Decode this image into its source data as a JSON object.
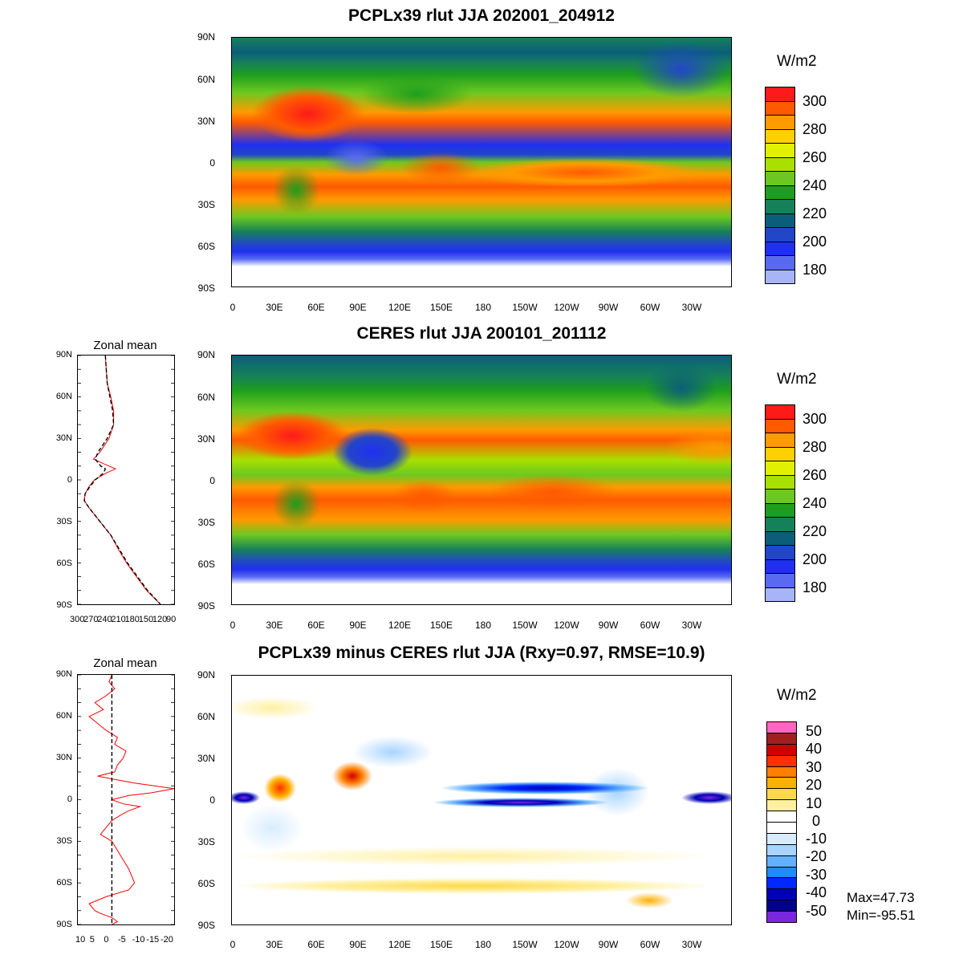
{
  "panels": [
    {
      "title": "PCPLx39 rlut JJA 202001_204912",
      "units": "W/m2",
      "colorbar": {
        "labels": [
          "300",
          "280",
          "260",
          "240",
          "220",
          "200",
          "180"
        ],
        "colors": [
          "#ff1a1a",
          "#ff5a00",
          "#ff9a00",
          "#ffd000",
          "#e0f000",
          "#a8e000",
          "#6cc820",
          "#1e9e1e",
          "#16805a",
          "#0a5e7a",
          "#2246c8",
          "#2030f0",
          "#5a6af0",
          "#a8b4f8",
          "#ffffff"
        ]
      }
    },
    {
      "title": "CERES rlut JJA 200101_201112",
      "units": "W/m2",
      "colorbar": {
        "labels": [
          "300",
          "280",
          "260",
          "240",
          "220",
          "200",
          "180"
        ],
        "colors": [
          "#ff1a1a",
          "#ff5a00",
          "#ff9a00",
          "#ffd000",
          "#e0f000",
          "#a8e000",
          "#6cc820",
          "#1e9e1e",
          "#16805a",
          "#0a5e7a",
          "#2246c8",
          "#2030f0",
          "#5a6af0",
          "#a8b4f8",
          "#ffffff"
        ]
      }
    },
    {
      "title": "PCPLx39 minus CERES rlut JJA (Rxy=0.97, RMSE=10.9)",
      "units": "W/m2",
      "colorbar": {
        "labels": [
          "50",
          "40",
          "30",
          "20",
          "10",
          "0",
          "-10",
          "-20",
          "-30",
          "-40",
          "-50"
        ],
        "colors": [
          "#ff66c0",
          "#a02020",
          "#d00000",
          "#ff3000",
          "#ff8000",
          "#ffb000",
          "#ffd84a",
          "#fff0a0",
          "#ffffff",
          "#ffffff",
          "#d8ecff",
          "#a8d4ff",
          "#62b0ff",
          "#1e8cff",
          "#0028ff",
          "#0000b4",
          "#00008c",
          "#7a28e0"
        ]
      },
      "stats": {
        "max": "Max=47.73",
        "min": "Min=-95.51"
      }
    }
  ],
  "lat_ticks": [
    "90N",
    "60N",
    "30N",
    "0",
    "30S",
    "60S",
    "90S"
  ],
  "lon_ticks": [
    "0",
    "30E",
    "60E",
    "90E",
    "120E",
    "150E",
    "180",
    "150W",
    "120W",
    "90W",
    "60W",
    "30W"
  ],
  "zonal_mean": {
    "title": "Zonal mean",
    "clim_xticks": [
      "300",
      "270",
      "240",
      "210",
      "180",
      "150",
      "120",
      "90"
    ],
    "diff_xticks": [
      "10",
      "5",
      "0",
      "-5",
      "-10",
      "-15",
      "-20"
    ],
    "clim_xlim": [
      300,
      90
    ],
    "diff_xlim": [
      12,
      -22
    ]
  },
  "chart_data": [
    {
      "type": "line",
      "title": "Zonal mean",
      "xlim": [
        300,
        90
      ],
      "ylim": [
        -90,
        90
      ],
      "series": [
        {
          "color": "#ff0000",
          "lat": [
            90,
            80,
            70,
            60,
            50,
            40,
            30,
            20,
            15,
            10,
            8,
            5,
            0,
            -5,
            -10,
            -15,
            -20,
            -30,
            -40,
            -50,
            -60,
            -70,
            -80,
            -90
          ],
          "values": [
            240,
            238,
            236,
            228,
            222,
            222,
            232,
            252,
            266,
            232,
            218,
            238,
            264,
            276,
            284,
            286,
            276,
            252,
            228,
            212,
            194,
            172,
            150,
            120
          ]
        },
        {
          "color": "#000000",
          "dash": true,
          "lat": [
            90,
            80,
            70,
            60,
            50,
            40,
            30,
            20,
            15,
            10,
            8,
            5,
            0,
            -5,
            -10,
            -15,
            -20,
            -30,
            -40,
            -50,
            -60,
            -70,
            -80,
            -90
          ],
          "values": [
            240,
            238,
            236,
            230,
            224,
            222,
            236,
            256,
            262,
            250,
            240,
            244,
            262,
            274,
            284,
            286,
            276,
            252,
            228,
            210,
            192,
            170,
            148,
            120
          ]
        }
      ]
    },
    {
      "type": "line",
      "title": "Zonal mean",
      "xlim": [
        12,
        -22
      ],
      "ylim": [
        -90,
        90
      ],
      "series": [
        {
          "color": "#ff0000",
          "lat": [
            90,
            85,
            80,
            75,
            70,
            65,
            60,
            55,
            50,
            45,
            40,
            35,
            30,
            25,
            20,
            17,
            15,
            12,
            10,
            8,
            5,
            3,
            0,
            -3,
            -5,
            -8,
            -10,
            -15,
            -20,
            -25,
            -30,
            -40,
            -50,
            -60,
            -65,
            -70,
            -75,
            -80,
            -82,
            -85,
            -88,
            -90
          ],
          "values": [
            0,
            1,
            -1,
            2,
            6,
            3,
            8,
            5,
            2,
            -2,
            -1,
            -5,
            -4,
            -2,
            -1,
            5,
            0,
            -8,
            -15,
            -22,
            -14,
            -6,
            0,
            -4,
            -10,
            -6,
            -4,
            0,
            2,
            4,
            0,
            -3,
            -6,
            -8,
            -6,
            2,
            8,
            6,
            4,
            0,
            -2,
            0
          ]
        },
        {
          "color": "#000000",
          "dash": true,
          "lat": [
            90,
            -90
          ],
          "values": [
            0,
            0
          ]
        }
      ]
    }
  ]
}
